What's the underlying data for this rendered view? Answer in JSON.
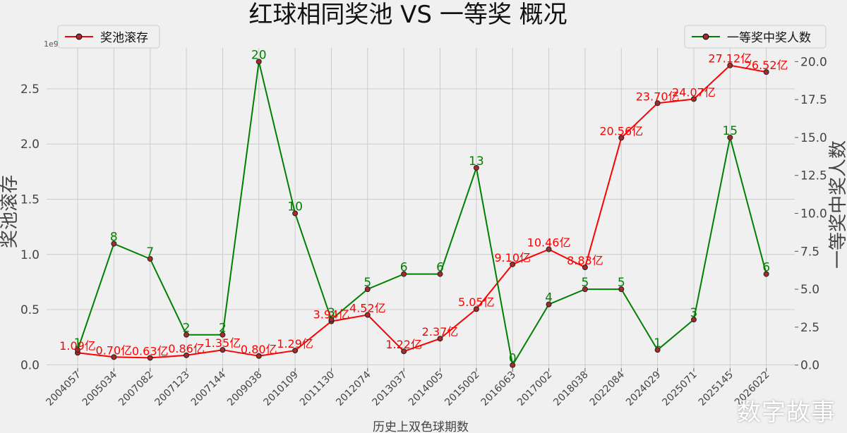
{
  "chart_data": {
    "type": "line",
    "title": "红球相同奖池 VS 一等奖 概况",
    "xlabel": "历史上双色球期数",
    "ylabel_left": "奖池滚存",
    "ylabel_right": "一等奖中奖人数",
    "left_axis_multiplier": "1e9",
    "categories": [
      "2004057",
      "2005034",
      "2007082",
      "2007123",
      "2007144",
      "2009038",
      "2010109",
      "2011130",
      "2012074",
      "2013037",
      "2014005",
      "2015002",
      "2016063",
      "2017002",
      "2018038",
      "2022084",
      "2024029",
      "2025071",
      "2025145",
      "2026022"
    ],
    "left_ticks": [
      "0.0",
      "0.5",
      "1.0",
      "1.5",
      "2.0",
      "2.5"
    ],
    "right_ticks": [
      "0.0",
      "2.5",
      "5.0",
      "7.5",
      "10.0",
      "12.5",
      "15.0",
      "17.5",
      "20.0"
    ],
    "ylim_left": [
      -0.03,
      2.87
    ],
    "ylim_right": [
      -0.2,
      20.9
    ],
    "grid": true,
    "series": [
      {
        "name": "奖池滚存",
        "axis": "left",
        "color": "#ff0000",
        "values": [
          0.109,
          0.07,
          0.063,
          0.086,
          0.135,
          0.08,
          0.129,
          0.394,
          0.452,
          0.122,
          0.237,
          0.505,
          0.91,
          1.046,
          0.883,
          2.056,
          2.37,
          2.407,
          2.712,
          2.652
        ],
        "labels": [
          "1.09亿",
          "0.70亿",
          "0.63亿",
          "0.86亿",
          "1.35亿",
          "0.80亿",
          "1.29亿",
          "3.94亿",
          "4.52亿",
          "1.22亿",
          "2.37亿",
          "5.05亿",
          "9.10亿",
          "10.46亿",
          "8.83亿",
          "20.56亿",
          "23.70亿",
          "24.07亿",
          "27.12亿",
          "26.52亿"
        ],
        "legend_position": "upper-left"
      },
      {
        "name": "一等奖中奖人数",
        "axis": "right",
        "color": "#008000",
        "values": [
          1,
          8,
          7,
          2,
          2,
          20,
          10,
          3,
          5,
          6,
          6,
          13,
          0,
          4,
          5,
          5,
          1,
          3,
          15,
          6
        ],
        "labels": [
          "1",
          "8",
          "7",
          "2",
          "2",
          "20",
          "10",
          "3",
          "5",
          "6",
          "6",
          "13",
          "0",
          "4",
          "5",
          "5",
          "1",
          "3",
          "15",
          "6"
        ],
        "legend_position": "upper-right"
      }
    ]
  },
  "watermark": "数字故事"
}
